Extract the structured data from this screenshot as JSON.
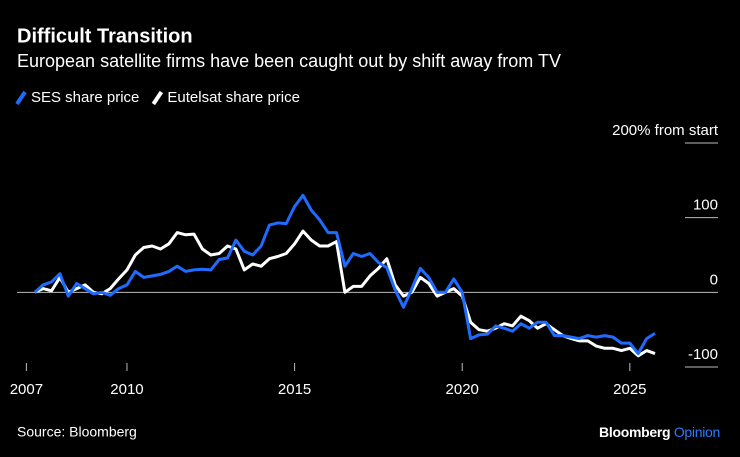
{
  "chart_data": {
    "type": "line",
    "title": "Difficult Transition",
    "subtitle": "European satellite firms have been caught out by shift away from TV",
    "source": "Source: Bloomberg",
    "branding": [
      "Bloomberg",
      "Opinion"
    ],
    "x": [
      2007.25,
      2007.5,
      2007.75,
      2008,
      2008.25,
      2008.5,
      2008.75,
      2009,
      2009.25,
      2009.5,
      2009.75,
      2010,
      2010.25,
      2010.5,
      2010.75,
      2011,
      2011.25,
      2011.5,
      2011.75,
      2012,
      2012.25,
      2012.5,
      2012.75,
      2013,
      2013.25,
      2013.5,
      2013.75,
      2014,
      2014.25,
      2014.5,
      2014.75,
      2015,
      2015.25,
      2015.5,
      2015.75,
      2016,
      2016.25,
      2016.5,
      2016.75,
      2017,
      2017.25,
      2017.5,
      2017.75,
      2018,
      2018.25,
      2018.5,
      2018.75,
      2019,
      2019.25,
      2019.5,
      2019.75,
      2020,
      2020.25,
      2020.5,
      2020.75,
      2021,
      2021.25,
      2021.5,
      2021.75,
      2022,
      2022.25,
      2022.5,
      2022.75,
      2023,
      2023.25,
      2023.5,
      2023.75,
      2024,
      2024.25,
      2024.5,
      2024.75,
      2025,
      2025.25,
      2025.5,
      2025.75
    ],
    "series": [
      {
        "name": "SES share price",
        "color": "#1f6bff",
        "values": [
          0,
          10,
          14,
          25,
          -5,
          12,
          5,
          -2,
          0,
          -4,
          5,
          10,
          28,
          20,
          22,
          24,
          28,
          35,
          28,
          30,
          31,
          30,
          44,
          46,
          70,
          55,
          50,
          62,
          90,
          93,
          92,
          115,
          130,
          110,
          97,
          80,
          80,
          35,
          52,
          48,
          52,
          40,
          33,
          3,
          -20,
          5,
          32,
          20,
          0,
          0,
          18,
          0,
          -62,
          -57,
          -56,
          -45,
          -48,
          -52,
          -42,
          -48,
          -40,
          -40,
          -58,
          -58,
          -60,
          -62,
          -58,
          -60,
          -58,
          -60,
          -68,
          -68,
          -82,
          -62,
          -55
        ]
      },
      {
        "name": "Eutelsat share price",
        "color": "#ffffff",
        "values": [
          0,
          5,
          2,
          20,
          0,
          5,
          10,
          0,
          -2,
          5,
          18,
          30,
          50,
          60,
          62,
          58,
          65,
          80,
          77,
          78,
          58,
          50,
          52,
          62,
          58,
          30,
          38,
          35,
          45,
          48,
          52,
          65,
          82,
          70,
          62,
          62,
          68,
          0,
          8,
          8,
          22,
          32,
          45,
          10,
          -5,
          0,
          20,
          12,
          -5,
          0,
          5,
          -5,
          -40,
          -50,
          -52,
          -48,
          -42,
          -45,
          -32,
          -38,
          -48,
          -42,
          -50,
          -58,
          -62,
          -65,
          -65,
          -72,
          -75,
          -75,
          -78,
          -75,
          -85,
          -78,
          -82
        ]
      }
    ],
    "xlim": [
      2006.72,
      2027.63
    ],
    "xticks": [
      2007,
      2010,
      2015,
      2020,
      2025
    ],
    "ylim": [
      -100,
      200
    ],
    "yticks": [
      {
        "value": 200,
        "label": "200% from start"
      },
      100,
      0,
      -100
    ]
  }
}
